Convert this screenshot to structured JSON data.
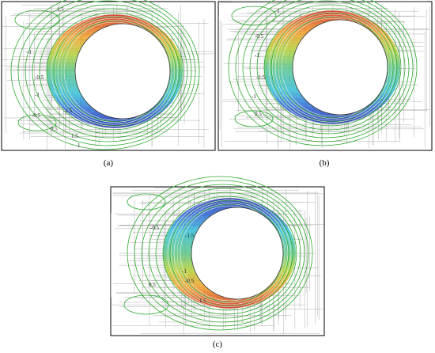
{
  "panels": [
    {
      "label": "(a)",
      "contour_labels": [
        "1.5",
        "-1",
        "-0.5",
        "-1",
        "-1.5",
        "-0.5",
        "0.5",
        "1",
        "1.5"
      ]
    },
    {
      "label": "(b)",
      "contour_labels": [
        "1",
        "-0.5",
        "-1",
        "-1.5",
        "-1",
        "0.5"
      ]
    },
    {
      "label": "(c)",
      "contour_labels": [
        "-0.5",
        "-1.5",
        "-1",
        "-0.5",
        "1.5",
        "0.5"
      ]
    }
  ]
}
